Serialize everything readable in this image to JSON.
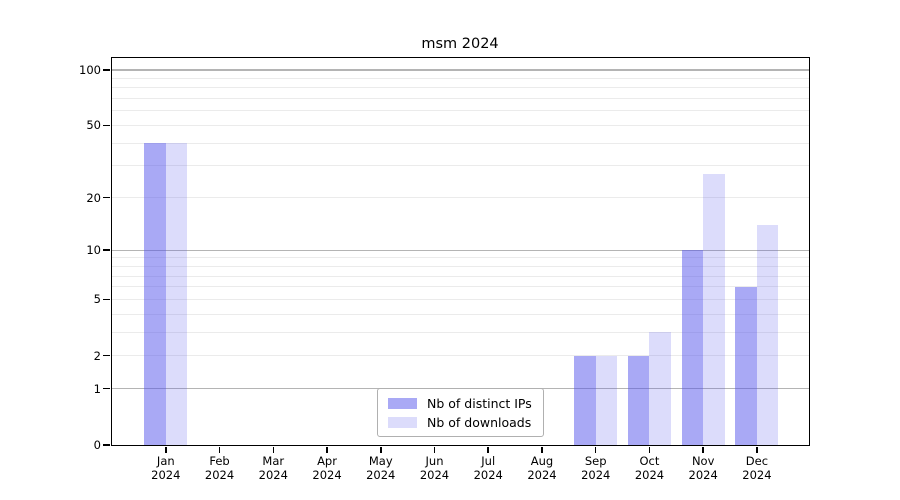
{
  "title": "msm 2024",
  "chart_data": {
    "type": "bar",
    "title": "msm 2024",
    "categories": [
      {
        "line1": "Jan",
        "line2": "2024"
      },
      {
        "line1": "Feb",
        "line2": "2024"
      },
      {
        "line1": "Mar",
        "line2": "2024"
      },
      {
        "line1": "Apr",
        "line2": "2024"
      },
      {
        "line1": "May",
        "line2": "2024"
      },
      {
        "line1": "Jun",
        "line2": "2024"
      },
      {
        "line1": "Jul",
        "line2": "2024"
      },
      {
        "line1": "Aug",
        "line2": "2024"
      },
      {
        "line1": "Sep",
        "line2": "2024"
      },
      {
        "line1": "Oct",
        "line2": "2024"
      },
      {
        "line1": "Nov",
        "line2": "2024"
      },
      {
        "line1": "Dec",
        "line2": "2024"
      }
    ],
    "series": [
      {
        "name": "Nb of distinct IPs",
        "color": "rgba(80,80,235,0.49)",
        "values": [
          40,
          0,
          0,
          0,
          0,
          0,
          0,
          0,
          2,
          2,
          10,
          6
        ]
      },
      {
        "name": "Nb of downloads",
        "color": "rgba(80,80,235,0.2)",
        "values": [
          40,
          0,
          0,
          0,
          0,
          0,
          0,
          0,
          2,
          3,
          27,
          14
        ]
      }
    ],
    "xlabel": "",
    "ylabel": "",
    "yscale": "log1p",
    "ylim": [
      0,
      116
    ],
    "yticks": [
      0,
      1,
      2,
      5,
      10,
      20,
      50,
      100
    ],
    "major_gridline_values": [
      1,
      10,
      100
    ],
    "minor_gridline_values": [
      2,
      3,
      4,
      5,
      6,
      7,
      8,
      9,
      20,
      30,
      40,
      50,
      60,
      70,
      80,
      90
    ],
    "grid": true,
    "legend_position": "lower center",
    "colors": {
      "major_grid": "#b4b4b4",
      "minor_grid": "#ebebeb",
      "spine": "#000000",
      "background": "#ffffff",
      "legend_border": "#b0b0b0"
    }
  }
}
